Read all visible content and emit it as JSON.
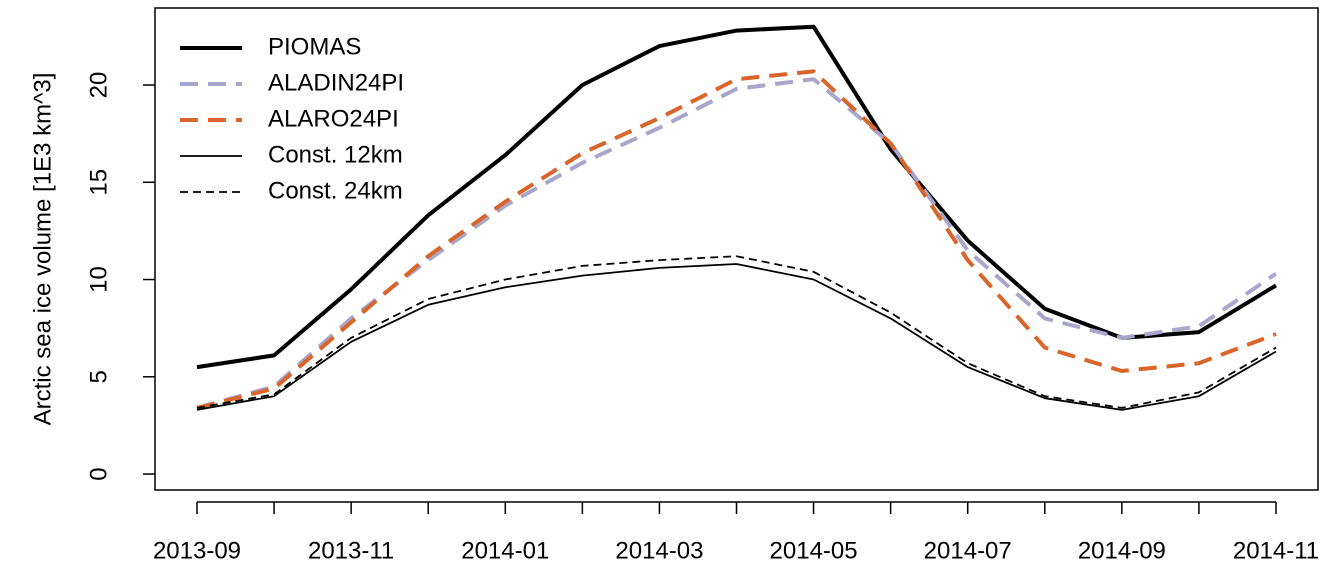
{
  "chart_data": {
    "type": "line",
    "y_label": "Arctic sea ice volume [1E3 km^3]",
    "categories": [
      "2013-09",
      null,
      "2013-11",
      null,
      "2014-01",
      null,
      "2014-03",
      null,
      "2014-05",
      null,
      "2014-07",
      null,
      "2014-09",
      null,
      "2014-11"
    ],
    "series": [
      {
        "name": "PIOMAS",
        "color": "#000000",
        "dash": "solid",
        "values": [
          5.5,
          6.1,
          9.5,
          13.3,
          16.4,
          20.0,
          22.0,
          22.8,
          23.0,
          16.7,
          12.0,
          8.5,
          7.0,
          7.3,
          9.7
        ]
      },
      {
        "name": "ALADIN24PI",
        "color": "#a9a6cc",
        "dash": "dashed",
        "values": [
          3.4,
          4.5,
          8.0,
          11.0,
          13.8,
          16.0,
          17.8,
          19.8,
          20.3,
          17.0,
          11.5,
          8.0,
          7.0,
          7.6,
          10.3
        ]
      },
      {
        "name": "ALARO24PI",
        "color": "#d9652b",
        "dash": "dashed",
        "values": [
          3.4,
          4.4,
          7.8,
          11.2,
          14.0,
          16.5,
          18.3,
          20.3,
          20.7,
          17.0,
          11.0,
          6.5,
          5.3,
          5.7,
          7.2
        ]
      },
      {
        "name": "Const. 12km",
        "color": "#000000",
        "dash": "solid",
        "values": [
          3.3,
          4.0,
          6.8,
          8.7,
          9.6,
          10.2,
          10.6,
          10.8,
          10.0,
          8.0,
          5.5,
          3.9,
          3.3,
          4.0,
          6.3
        ]
      },
      {
        "name": "Const. 24km",
        "color": "#000000",
        "dash": "dashed",
        "values": [
          3.4,
          4.1,
          7.0,
          9.0,
          10.0,
          10.7,
          11.0,
          11.2,
          10.4,
          8.3,
          5.7,
          4.0,
          3.4,
          4.2,
          6.5
        ]
      }
    ],
    "ylim": [
      -0.82,
      23.96
    ],
    "yticks": [
      0,
      5,
      10,
      15,
      20
    ],
    "legend": "top-left"
  }
}
